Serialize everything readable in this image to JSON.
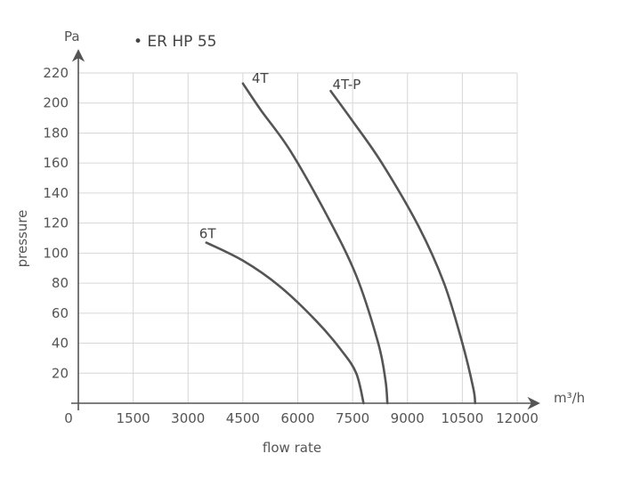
{
  "chart_data": {
    "type": "line",
    "title": "• ER HP 55",
    "xlabel": "flow rate",
    "ylabel": "pressure",
    "x_unit": "m³/h",
    "y_unit": "Pa",
    "xlim": [
      0,
      12000
    ],
    "ylim": [
      0,
      220
    ],
    "x_ticks": [
      0,
      1500,
      3000,
      4500,
      6000,
      7500,
      9000,
      10500,
      12000
    ],
    "x_tick_labels": [
      "0",
      "1500",
      "3000",
      "4500",
      "6000",
      "7500",
      "9000",
      "10500",
      "12000"
    ],
    "y_ticks": [
      20,
      40,
      60,
      80,
      100,
      120,
      140,
      160,
      180,
      200,
      220
    ],
    "y_tick_labels": [
      "20",
      "40",
      "60",
      "80",
      "100",
      "120",
      "140",
      "160",
      "180",
      "200",
      "220"
    ],
    "grid": true,
    "series": [
      {
        "name": "6T",
        "x": [
          3500,
          4500,
          5500,
          6500,
          7200,
          7600,
          7800
        ],
        "y": [
          107,
          95,
          78,
          55,
          35,
          20,
          0
        ]
      },
      {
        "name": "4T",
        "x": [
          4500,
          5000,
          5800,
          6800,
          7600,
          8200,
          8400,
          8450
        ],
        "y": [
          213,
          195,
          168,
          125,
          85,
          40,
          15,
          0
        ]
      },
      {
        "name": "4T-P",
        "x": [
          6900,
          7500,
          8300,
          9300,
          10000,
          10500,
          10800,
          10850
        ],
        "y": [
          208,
          188,
          160,
          118,
          80,
          40,
          10,
          0
        ]
      }
    ]
  }
}
